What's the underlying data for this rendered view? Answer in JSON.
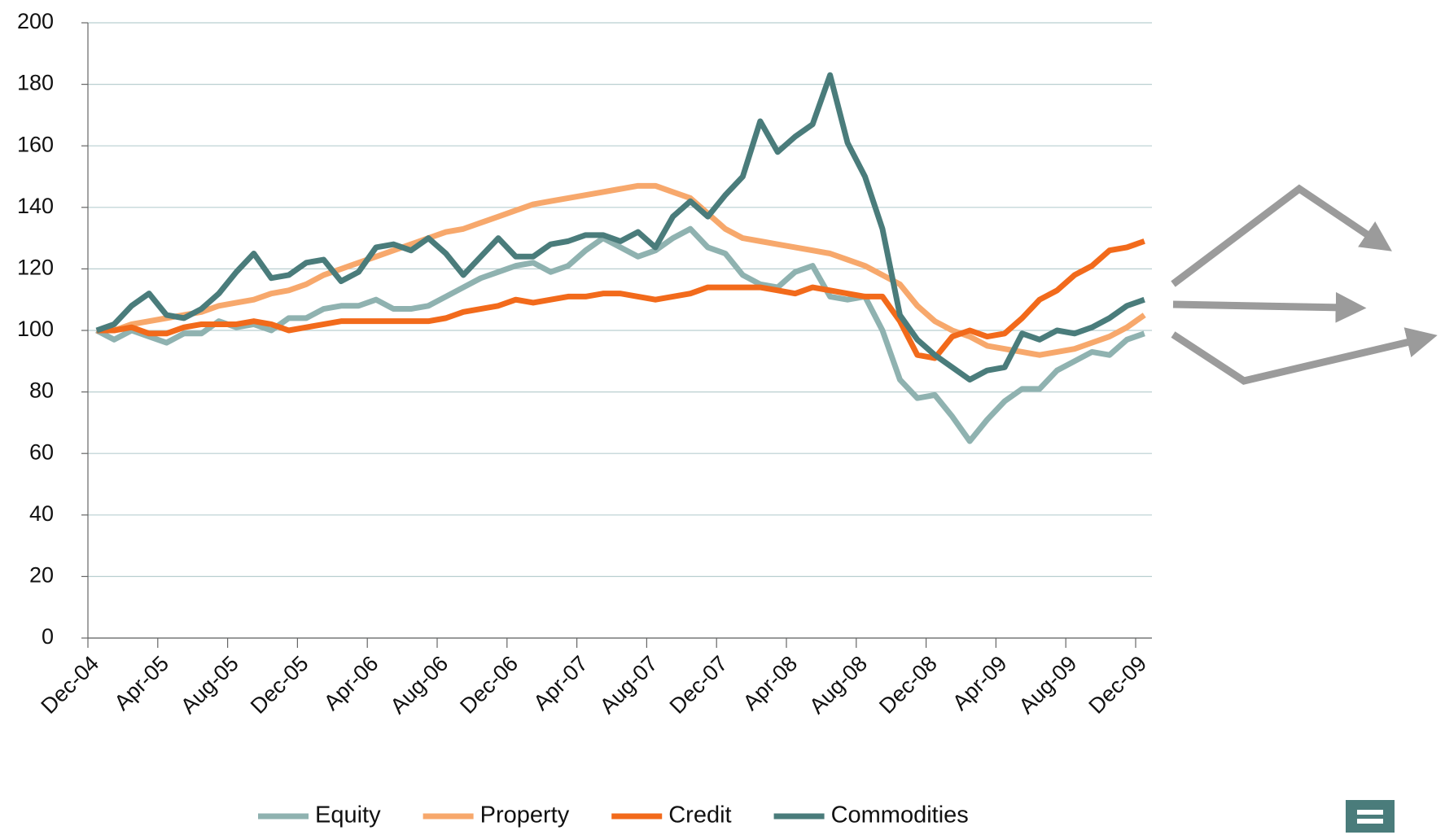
{
  "chart_data": {
    "type": "line",
    "categories": [
      "Dec-04",
      null,
      null,
      null,
      "Apr-05",
      null,
      null,
      null,
      "Aug-05",
      null,
      null,
      null,
      "Dec-05",
      null,
      null,
      null,
      "Apr-06",
      null,
      null,
      null,
      "Aug-06",
      null,
      null,
      null,
      "Dec-06",
      null,
      null,
      null,
      "Apr-07",
      null,
      null,
      null,
      "Aug-07",
      null,
      null,
      null,
      "Dec-07",
      null,
      null,
      null,
      "Apr-08",
      null,
      null,
      null,
      "Aug-08",
      null,
      null,
      null,
      "Dec-08",
      null,
      null,
      null,
      "Apr-09",
      null,
      null,
      null,
      "Aug-09",
      null,
      null,
      null,
      "Dec-09"
    ],
    "series": [
      {
        "name": "Equity",
        "color": "#8fb2b0",
        "values": [
          100,
          97,
          100,
          98,
          96,
          99,
          99,
          103,
          101,
          102,
          100,
          104,
          104,
          107,
          108,
          108,
          110,
          107,
          107,
          108,
          111,
          114,
          117,
          119,
          121,
          122,
          119,
          121,
          126,
          130,
          127,
          124,
          126,
          130,
          133,
          127,
          125,
          118,
          115,
          114,
          119,
          121,
          111,
          110,
          111,
          100,
          84,
          78,
          79,
          72,
          64,
          71,
          77,
          81,
          81,
          87,
          90,
          93,
          92,
          97,
          99
        ]
      },
      {
        "name": "Property",
        "color": "#f7a86c",
        "values": [
          100,
          100,
          102,
          103,
          104,
          105,
          106,
          108,
          109,
          110,
          112,
          113,
          115,
          118,
          120,
          122,
          124,
          126,
          128,
          130,
          132,
          133,
          135,
          137,
          139,
          141,
          142,
          143,
          144,
          145,
          146,
          147,
          147,
          145,
          143,
          138,
          133,
          130,
          129,
          128,
          127,
          126,
          125,
          123,
          121,
          118,
          115,
          108,
          103,
          100,
          98,
          95,
          94,
          93,
          92,
          93,
          94,
          96,
          98,
          101,
          105
        ]
      },
      {
        "name": "Credit",
        "color": "#f26a1b",
        "values": [
          100,
          100,
          101,
          99,
          99,
          101,
          102,
          102,
          102,
          103,
          102,
          100,
          101,
          102,
          103,
          103,
          103,
          103,
          103,
          103,
          104,
          106,
          107,
          108,
          110,
          109,
          110,
          111,
          111,
          112,
          112,
          111,
          110,
          111,
          112,
          114,
          114,
          114,
          114,
          113,
          112,
          114,
          113,
          112,
          111,
          111,
          103,
          92,
          91,
          98,
          100,
          98,
          99,
          104,
          110,
          113,
          118,
          121,
          126,
          127,
          129
        ]
      },
      {
        "name": "Commodities",
        "color": "#4a7c7b",
        "values": [
          100,
          102,
          108,
          112,
          105,
          104,
          107,
          112,
          119,
          125,
          117,
          118,
          122,
          123,
          116,
          119,
          127,
          128,
          126,
          130,
          125,
          118,
          124,
          130,
          124,
          124,
          128,
          129,
          131,
          131,
          129,
          132,
          127,
          137,
          142,
          137,
          144,
          150,
          168,
          158,
          163,
          167,
          183,
          161,
          150,
          133,
          105,
          97,
          92,
          88,
          84,
          87,
          88,
          99,
          97,
          100,
          99,
          101,
          104,
          108,
          110
        ]
      }
    ],
    "ylim": [
      0,
      200
    ],
    "yticks": [
      0,
      20,
      40,
      60,
      80,
      100,
      120,
      140,
      160,
      180,
      200
    ],
    "grid": true
  }
}
